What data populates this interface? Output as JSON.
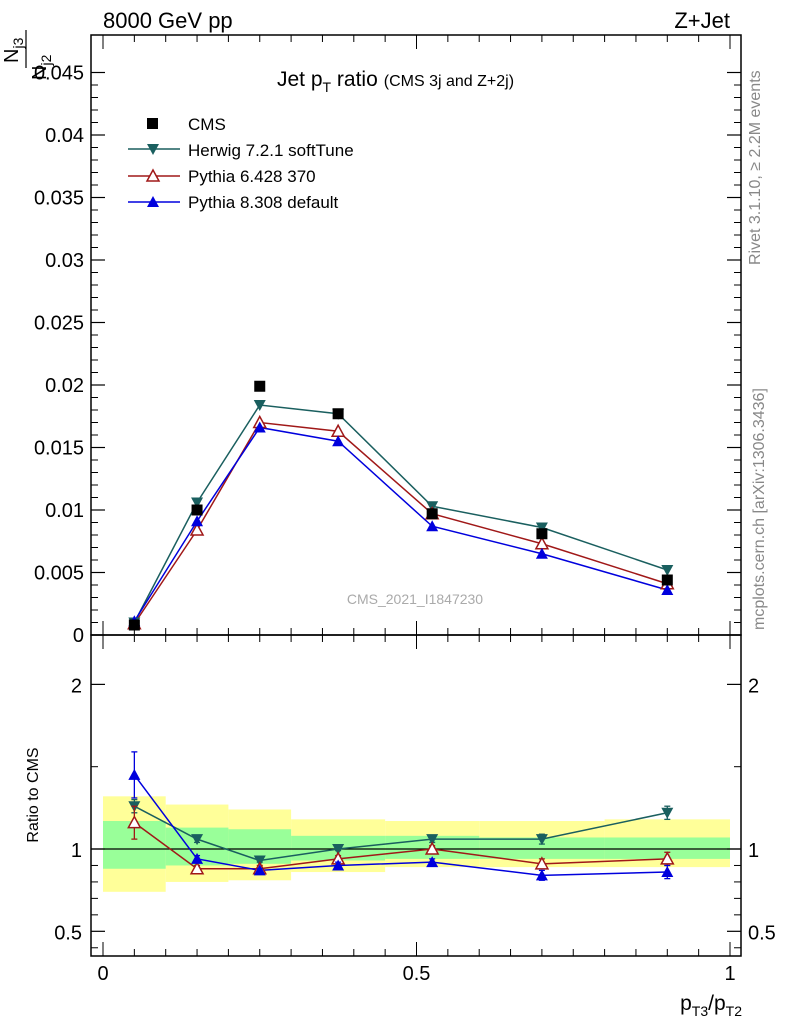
{
  "header": {
    "energy_label": "8000 GeV pp",
    "process_label": "Z+Jet"
  },
  "side_labels": {
    "rivet": "Rivet 3.1.10, ≥ 2.2M events",
    "mcplots": "mcplots.cern.ch [arXiv:1306.3436]"
  },
  "watermark": "CMS_2021_I1847230",
  "colors": {
    "cms": "#000000",
    "herwig": "#1a5f5f",
    "pythia6": "#a01818",
    "pythia8": "#0000dd",
    "band_yellow": "#ffff99",
    "band_green": "#99ff99"
  },
  "chart_data": [
    {
      "type": "line",
      "title": {
        "main": "Jet p",
        "sub": "T",
        "rest": " ratio",
        "small": "(CMS 3j and Z+2j)"
      },
      "ylabel": {
        "n1": "N",
        "s1": "j3",
        "n2": "N",
        "s2": "j2"
      },
      "xlim": [
        0,
        1
      ],
      "ylim": [
        0,
        0.048
      ],
      "y_ticks": [
        0,
        0.005,
        0.01,
        0.015,
        0.02,
        0.025,
        0.03,
        0.035,
        0.04,
        0.045
      ],
      "y_tick_labels": [
        "0",
        "0.005",
        "0.01",
        "0.015",
        "0.02",
        "0.025",
        "0.03",
        "0.035",
        "0.04",
        "0.045"
      ],
      "legend_position": "top-left",
      "x": [
        0.05,
        0.15,
        0.25,
        0.375,
        0.525,
        0.7,
        0.9
      ],
      "series": [
        {
          "name": "CMS",
          "key": "cms",
          "marker": "square",
          "line": false,
          "values": [
            0.0008,
            0.01,
            0.0199,
            0.0177,
            0.0097,
            0.0081,
            0.0044
          ]
        },
        {
          "name": "Herwig 7.2.1 softTune",
          "key": "herwig",
          "marker": "tri-down",
          "line": true,
          "values": [
            0.001,
            0.0106,
            0.0184,
            0.0177,
            0.0103,
            0.0086,
            0.0052
          ]
        },
        {
          "name": "Pythia 6.428 370",
          "key": "pythia6",
          "marker": "tri-up-open",
          "line": true,
          "values": [
            0.0009,
            0.0084,
            0.017,
            0.0163,
            0.0097,
            0.0073,
            0.0041
          ]
        },
        {
          "name": "Pythia 8.308 default",
          "key": "pythia8",
          "marker": "tri-up",
          "line": true,
          "values": [
            0.0011,
            0.0091,
            0.0166,
            0.0155,
            0.0087,
            0.0065,
            0.0036
          ]
        }
      ]
    },
    {
      "type": "line",
      "ylabel": "Ratio to CMS",
      "xlabel": {
        "p1": "p",
        "s1": "T3",
        "sep": "/p",
        "s2": "T2"
      },
      "xlim": [
        0,
        1
      ],
      "ylim": [
        0.35,
        2.3
      ],
      "y_ticks": [
        0.5,
        1,
        2
      ],
      "y_tick_labels": [
        "0.5",
        "1",
        "2"
      ],
      "x_ticks": [
        0,
        0.5,
        1
      ],
      "x_tick_labels": [
        "0",
        "0.5",
        "1"
      ],
      "bands": [
        {
          "x": [
            0.0,
            0.1
          ],
          "yellow": [
            0.74,
            1.32
          ],
          "green": [
            0.88,
            1.17
          ]
        },
        {
          "x": [
            0.1,
            0.2
          ],
          "yellow": [
            0.8,
            1.27
          ],
          "green": [
            0.9,
            1.13
          ]
        },
        {
          "x": [
            0.2,
            0.3
          ],
          "yellow": [
            0.81,
            1.24
          ],
          "green": [
            0.91,
            1.12
          ]
        },
        {
          "x": [
            0.3,
            0.45
          ],
          "yellow": [
            0.86,
            1.18
          ],
          "green": [
            0.93,
            1.08
          ]
        },
        {
          "x": [
            0.45,
            0.6
          ],
          "yellow": [
            0.89,
            1.17
          ],
          "green": [
            0.94,
            1.08
          ]
        },
        {
          "x": [
            0.6,
            0.8
          ],
          "yellow": [
            0.89,
            1.17
          ],
          "green": [
            0.94,
            1.07
          ]
        },
        {
          "x": [
            0.8,
            1.0
          ],
          "yellow": [
            0.89,
            1.18
          ],
          "green": [
            0.94,
            1.07
          ]
        }
      ],
      "x": [
        0.05,
        0.15,
        0.25,
        0.375,
        0.525,
        0.7,
        0.9
      ],
      "series": [
        {
          "name": "Herwig 7.2.1 softTune",
          "key": "herwig",
          "marker": "tri-down",
          "values": [
            1.26,
            1.06,
            0.93,
            1.0,
            1.06,
            1.06,
            1.22
          ],
          "errors": [
            0.04,
            0.02,
            0.01,
            0.01,
            0.02,
            0.03,
            0.04
          ]
        },
        {
          "name": "Pythia 6.428 370",
          "key": "pythia6",
          "marker": "tri-up-open",
          "values": [
            1.16,
            0.88,
            0.88,
            0.94,
            1.0,
            0.91,
            0.94
          ],
          "errors": [
            0.1,
            0.02,
            0.02,
            0.02,
            0.02,
            0.03,
            0.04
          ]
        },
        {
          "name": "Pythia 8.308 default",
          "key": "pythia8",
          "marker": "tri-up",
          "values": [
            1.45,
            0.94,
            0.87,
            0.9,
            0.92,
            0.84,
            0.86
          ],
          "errors": [
            0.14,
            0.02,
            0.01,
            0.02,
            0.02,
            0.03,
            0.04
          ]
        }
      ]
    }
  ]
}
